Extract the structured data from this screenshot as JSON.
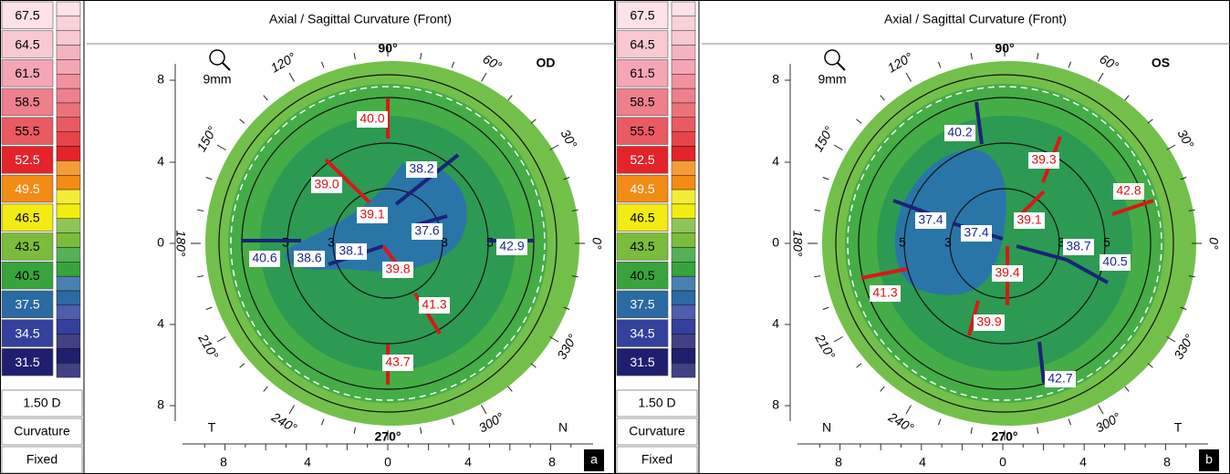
{
  "panels": [
    {
      "scale": {
        "labels": [
          "67.5",
          "64.5",
          "61.5",
          "58.5",
          "55.5",
          "52.5",
          "49.5",
          "46.5",
          "43.5",
          "40.5",
          "37.5",
          "34.5",
          "31.5"
        ],
        "colors": [
          "#fde2e8",
          "#f9c9d2",
          "#f4a6b4",
          "#ee7f8d",
          "#e95a62",
          "#e4232b",
          "#f28c14",
          "#f2ec12",
          "#7cbc3c",
          "#38a43c",
          "#2b6aa2",
          "#33409c",
          "#1f1f6e"
        ]
      },
      "footer": [
        "1.50 D",
        "Curvature",
        "Fixed"
      ],
      "title": "Axial / Sagittal Curvature (Front)",
      "eye": "OD",
      "zoom": "9mm",
      "angles": [
        "90°",
        "120°",
        "60°",
        "150°",
        "30°",
        "180°",
        "0°",
        "210°",
        "330°",
        "240°",
        "300°",
        "270°"
      ],
      "y_axis": [
        "8",
        "4",
        "0",
        "4",
        "8"
      ],
      "x_axis": [
        "8",
        "4",
        "0",
        "4",
        "8"
      ],
      "ring_labels": [
        "5",
        "3",
        "3",
        "5"
      ],
      "readings": [
        "40.0",
        "38.2",
        "39.0",
        "39.1",
        "37.6",
        "42.9",
        "40.6",
        "38.6",
        "38.1",
        "39.8",
        "41.3",
        "43.7"
      ],
      "left_letter": "T",
      "right_letter": "N",
      "panel_letter": "a"
    },
    {
      "scale": {
        "labels": [
          "67.5",
          "64.5",
          "61.5",
          "58.5",
          "55.5",
          "52.5",
          "49.5",
          "46.5",
          "43.5",
          "40.5",
          "37.5",
          "34.5",
          "31.5"
        ],
        "colors": [
          "#fde2e8",
          "#f9c9d2",
          "#f4a6b4",
          "#ee7f8d",
          "#e95a62",
          "#e4232b",
          "#f28c14",
          "#f2ec12",
          "#7cbc3c",
          "#38a43c",
          "#2b6aa2",
          "#33409c",
          "#1f1f6e"
        ]
      },
      "footer": [
        "1.50 D",
        "Curvature",
        "Fixed"
      ],
      "title": "Axial / Sagittal Curvature (Front)",
      "eye": "OS",
      "zoom": "9mm",
      "angles": [
        "90°",
        "120°",
        "60°",
        "150°",
        "30°",
        "180°",
        "0°",
        "210°",
        "330°",
        "240°",
        "300°",
        "270°"
      ],
      "y_axis": [
        "8",
        "4",
        "0",
        "4",
        "8"
      ],
      "x_axis": [
        "8",
        "4",
        "0",
        "4",
        "8"
      ],
      "ring_labels": [
        "5",
        "3",
        "3",
        "5"
      ],
      "readings": [
        "40.2",
        "39.3",
        "42.8",
        "37.4",
        "37.4",
        "39.1",
        "38.7",
        "40.5",
        "39.4",
        "41.3",
        "39.9",
        "42.7"
      ],
      "left_letter": "N",
      "right_letter": "T",
      "panel_letter": "b"
    }
  ]
}
